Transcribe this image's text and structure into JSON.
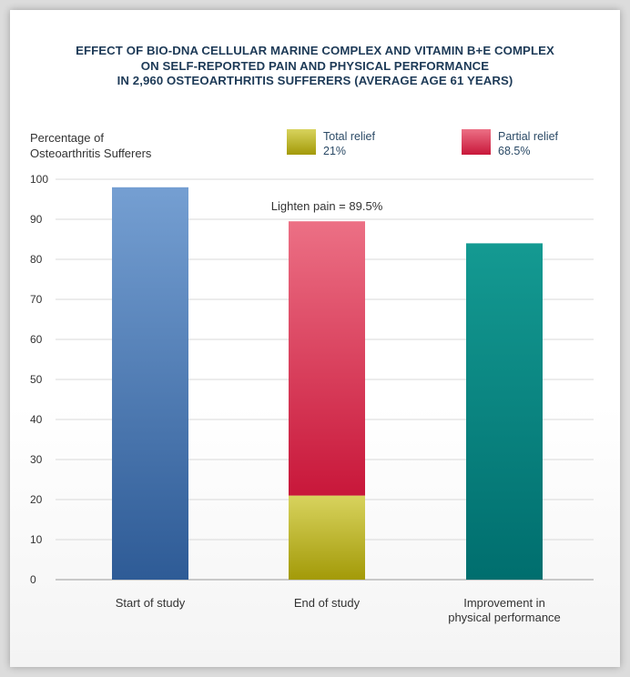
{
  "chart_data": {
    "type": "bar",
    "title_lines": [
      "EFFECT OF BIO-DNA CELLULAR MARINE COMPLEX AND VITAMIN B+E COMPLEX",
      "ON SELF-REPORTED PAIN AND PHYSICAL PERFORMANCE",
      "IN 2,960 OSTEOARTHRITIS SUFFERERS (AVERAGE AGE 61 YEARS)"
    ],
    "ylabel_lines": [
      "Percentage of",
      "Osteoarthritis Sufferers"
    ],
    "ylim": [
      0,
      100
    ],
    "yticks": [
      "0",
      "10",
      "20",
      "30",
      "40",
      "50",
      "60",
      "70",
      "80",
      "90",
      "100"
    ],
    "grid": true,
    "categories": [
      {
        "lines": [
          "Start of study"
        ]
      },
      {
        "lines": [
          "End of study"
        ]
      },
      {
        "lines": [
          "Improvement in",
          "physical performance"
        ]
      }
    ],
    "bars": [
      {
        "category": 0,
        "segments": [
          {
            "value": 98,
            "color_top": "#759fd2",
            "color_bottom": "#2e5b96"
          }
        ]
      },
      {
        "category": 1,
        "segments": [
          {
            "name": "Total relief",
            "value": 21,
            "color_top": "#d8d35e",
            "color_bottom": "#a39a08"
          },
          {
            "name": "Partial relief",
            "value": 68.5,
            "color_top": "#ec7085",
            "color_bottom": "#c8173a"
          }
        ],
        "label": "Lighten pain = 89.5%"
      },
      {
        "category": 2,
        "segments": [
          {
            "value": 84,
            "color_top": "#149a92",
            "color_bottom": "#006e6e"
          }
        ]
      }
    ],
    "legend": {
      "placement": "top-right",
      "entries": [
        {
          "label": "Total relief",
          "value": "21%",
          "color_top": "#d8d35e",
          "color_bottom": "#a39a08"
        },
        {
          "label": "Partial relief",
          "value": "68.5%",
          "color_top": "#ec7085",
          "color_bottom": "#c8173a"
        }
      ]
    }
  }
}
